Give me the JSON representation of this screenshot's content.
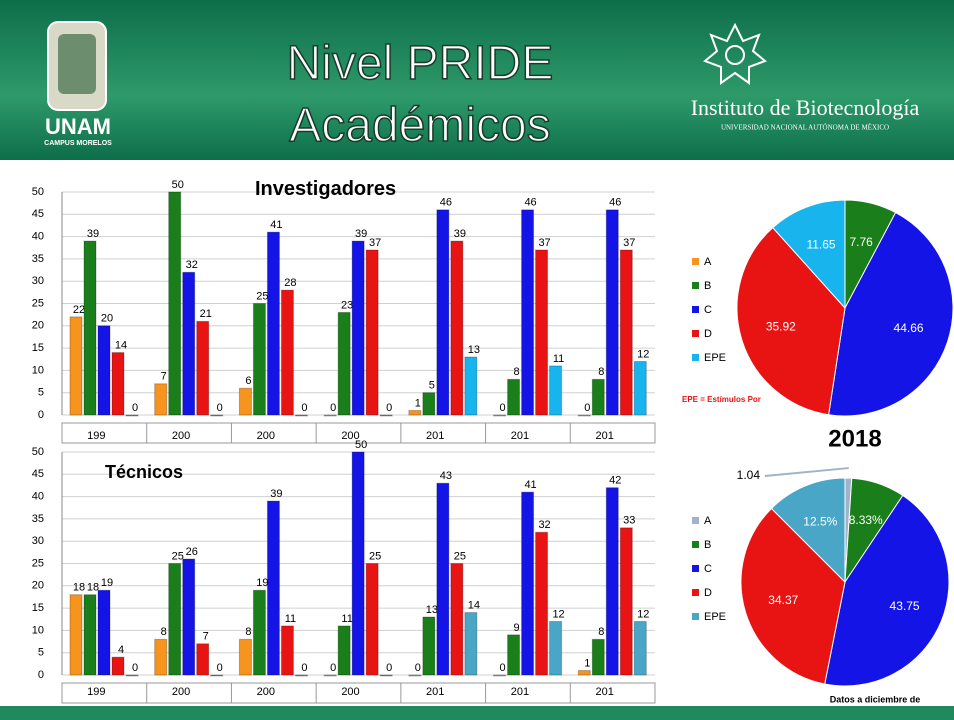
{
  "header": {
    "title_line1": "Nivel PRIDE",
    "title_line2": "Académicos",
    "logo_left": "UNAM",
    "logo_left_sub": "CAMPUS MORELOS",
    "institute": "Instituto de Biotecnología",
    "institute_sub": "UNIVERSIDAD NACIONAL AUTÓNOMA DE MÉXICO"
  },
  "chart_data": [
    {
      "type": "bar",
      "title": "Investigadores",
      "categories": [
        "199",
        "200",
        "200",
        "200",
        "201",
        "201",
        "201"
      ],
      "series": [
        {
          "name": "A",
          "color": "#f7941d",
          "values": [
            22,
            7,
            6,
            0,
            1,
            0,
            0
          ]
        },
        {
          "name": "B",
          "color": "#1a7f1a",
          "values": [
            39,
            50,
            25,
            23,
            5,
            8,
            8
          ]
        },
        {
          "name": "C",
          "color": "#1414e6",
          "values": [
            20,
            32,
            41,
            39,
            46,
            46,
            46
          ]
        },
        {
          "name": "D",
          "color": "#e81414",
          "values": [
            14,
            21,
            28,
            37,
            39,
            37,
            37
          ]
        },
        {
          "name": "EPE",
          "color": "#18b4ee",
          "values": [
            0,
            0,
            0,
            0,
            13,
            11,
            12
          ]
        }
      ],
      "ylim": [
        0,
        50
      ],
      "yticks": [
        0,
        5,
        10,
        15,
        20,
        25,
        30,
        35,
        40,
        45,
        50
      ],
      "grid": true
    },
    {
      "type": "pie",
      "categories": [
        "A",
        "B",
        "C",
        "D",
        "EPE"
      ],
      "colors": [
        "#f7941d",
        "#1a7f1a",
        "#1414e6",
        "#e81414",
        "#18b4ee"
      ],
      "values": [
        0,
        7.76,
        44.66,
        35.92,
        11.65
      ]
    },
    {
      "type": "bar",
      "title": "Técnicos",
      "categories": [
        "199",
        "200",
        "200",
        "200",
        "201",
        "201",
        "201"
      ],
      "series": [
        {
          "name": "A",
          "color": "#f7941d",
          "values": [
            18,
            8,
            8,
            0,
            0,
            0,
            1
          ]
        },
        {
          "name": "B",
          "color": "#1a7f1a",
          "values": [
            18,
            25,
            19,
            11,
            13,
            9,
            8
          ]
        },
        {
          "name": "C",
          "color": "#1414e6",
          "values": [
            19,
            26,
            39,
            50,
            43,
            41,
            42
          ]
        },
        {
          "name": "D",
          "color": "#e81414",
          "values": [
            4,
            7,
            11,
            25,
            25,
            32,
            33
          ]
        },
        {
          "name": "EPE",
          "color": "#4aa6c6",
          "values": [
            0,
            0,
            0,
            0,
            14,
            12,
            12
          ]
        }
      ],
      "ylim": [
        0,
        50
      ],
      "yticks": [
        0,
        5,
        10,
        15,
        20,
        25,
        30,
        35,
        40,
        45,
        50
      ],
      "grid": true
    },
    {
      "type": "pie",
      "title": "2018",
      "categories": [
        "A",
        "B",
        "C",
        "D",
        "EPE"
      ],
      "colors": [
        "#9fb4c8",
        "#1a7f1a",
        "#1414e6",
        "#e81414",
        "#4aa6c6"
      ],
      "values": [
        1.04,
        8.33,
        43.75,
        34.37,
        12.5
      ],
      "value_labels": [
        "1.04",
        "8.33%",
        "43.75",
        "34.37",
        "12.5%"
      ]
    }
  ],
  "notes": {
    "epe": "EPE = Estímulos Por",
    "date": "Datos a diciembre de"
  }
}
